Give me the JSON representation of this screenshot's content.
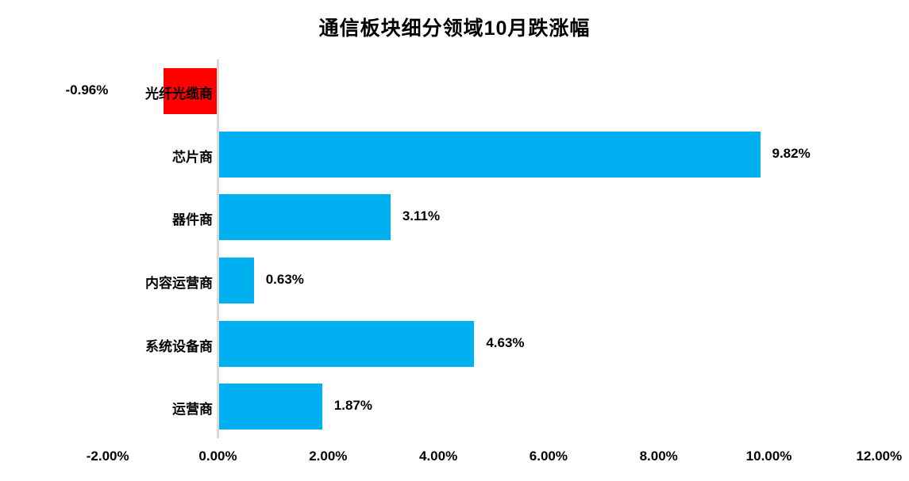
{
  "title": "通信板块细分领域10月跌涨幅",
  "colors": {
    "positive_bar": "#00B0F0",
    "negative_bar": "#FF0000",
    "axis_line": "#D9D9D9",
    "text": "#000000",
    "background": "#FFFFFF"
  },
  "chart_data": {
    "type": "bar",
    "orientation": "horizontal",
    "title": "通信板块细分领域10月跌涨幅",
    "categories": [
      "光纤光缆商",
      "芯片商",
      "器件商",
      "内容运营商",
      "系统设备商",
      "运营商"
    ],
    "values": [
      -0.96,
      9.82,
      3.11,
      0.63,
      4.63,
      1.87
    ],
    "value_labels": [
      "-0.96%",
      "9.82%",
      "3.11%",
      "0.63%",
      "4.63%",
      "1.87%"
    ],
    "x_axis_ticks": [
      "-2.00%",
      "0.00%",
      "2.00%",
      "4.00%",
      "6.00%",
      "8.00%",
      "10.00%",
      "12.00%"
    ],
    "x_axis_tick_values": [
      -2,
      0,
      2,
      4,
      6,
      8,
      10,
      12
    ],
    "x_axis_range": [
      -2,
      12
    ],
    "xlabel": "",
    "ylabel": "",
    "grid": false,
    "legend": false
  }
}
